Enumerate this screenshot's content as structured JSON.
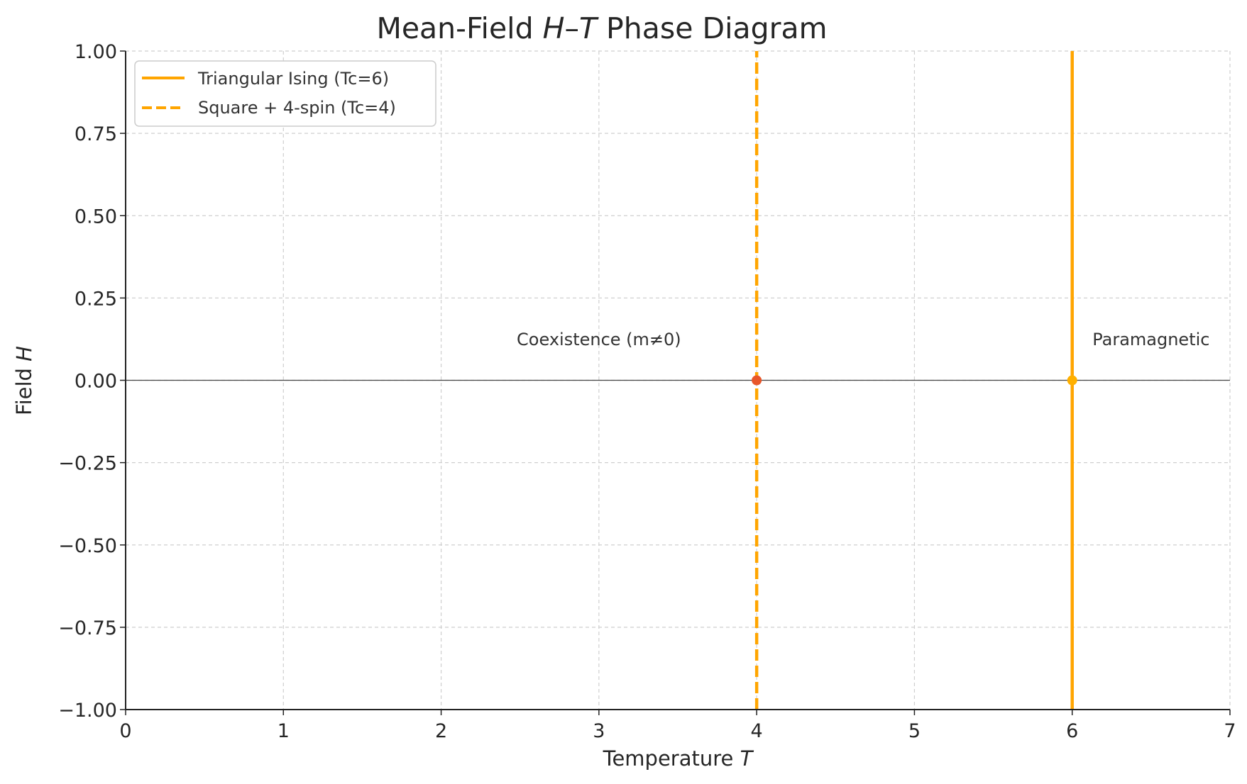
{
  "chart_data": {
    "type": "line",
    "title": {
      "prefix": "Mean-Field ",
      "italic_1": "H",
      "dash": "–",
      "italic_2": "T",
      "suffix": " Phase Diagram"
    },
    "xlabel": {
      "text": "Temperature ",
      "italic": "T"
    },
    "ylabel": {
      "text": "Field ",
      "italic": "H"
    },
    "xlim": [
      0,
      7
    ],
    "ylim": [
      -1.0,
      1.0
    ],
    "x_ticks": [
      "0",
      "1",
      "2",
      "3",
      "4",
      "5",
      "6",
      "7"
    ],
    "y_ticks": [
      "−1.00",
      "−0.75",
      "−0.50",
      "−0.25",
      "0.00",
      "0.25",
      "0.50",
      "0.75",
      "1.00"
    ],
    "grid": true,
    "legend_position": "top-left",
    "series": [
      {
        "name": "Triangular Ising (Tc=6)",
        "style": "solid",
        "color": "#FFA500",
        "x": [
          6,
          6
        ],
        "y": [
          -1.0,
          1.0
        ]
      },
      {
        "name": "Square + 4-spin (Tc=4)",
        "style": "dashed",
        "color": "#FFA500",
        "x": [
          4,
          4
        ],
        "y": [
          -1.0,
          1.0
        ]
      }
    ],
    "points": [
      {
        "x": 4,
        "y": 0,
        "color": "#E8562A"
      },
      {
        "x": 6,
        "y": 0,
        "color": "#FFB000"
      }
    ],
    "hline": {
      "y": 0,
      "color": "#444444"
    },
    "annotations": [
      {
        "text": "Coexistence (m≠0)",
        "x": 3,
        "y": 0.12
      },
      {
        "text": "Paramagnetic",
        "x": 6.5,
        "y": 0.12
      }
    ]
  }
}
